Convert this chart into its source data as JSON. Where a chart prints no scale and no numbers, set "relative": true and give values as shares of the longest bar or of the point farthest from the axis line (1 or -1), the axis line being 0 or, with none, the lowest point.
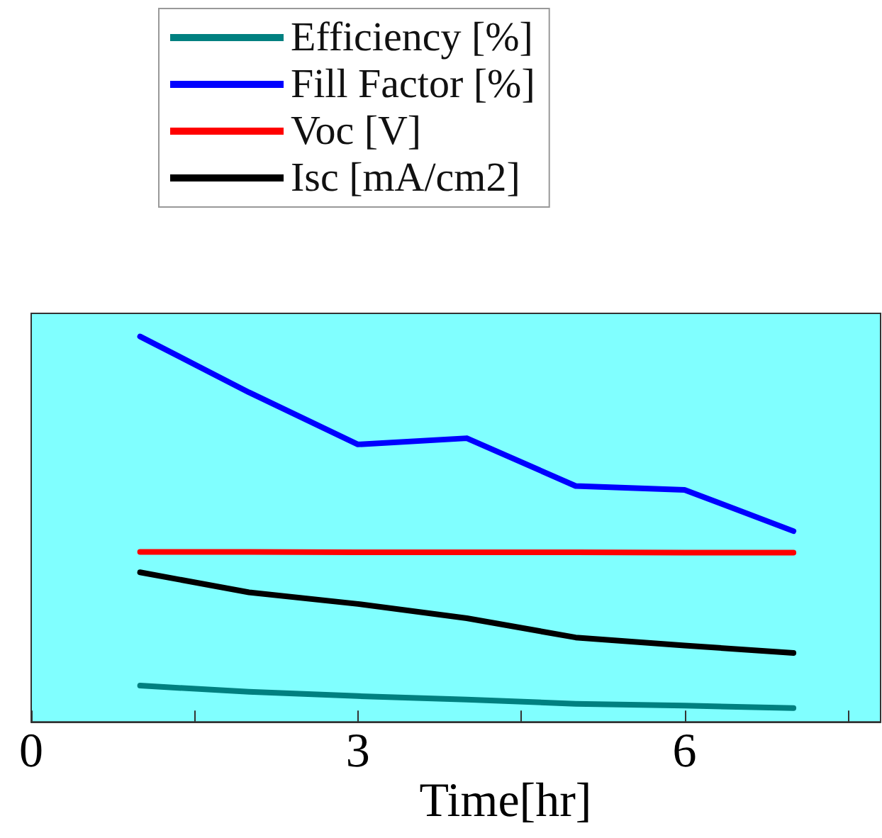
{
  "chart_data": {
    "type": "line",
    "relative": true,
    "xlabel": "Time[hr]",
    "x": [
      1,
      2,
      3,
      4,
      5,
      6,
      7
    ],
    "xlim": [
      0,
      7.8
    ],
    "xticks": [
      0,
      {
        "value": 1.5,
        "label": null
      },
      3,
      {
        "value": 4.5,
        "label": null
      },
      6,
      {
        "value": 7.5,
        "label": null
      }
    ],
    "series": [
      {
        "name": "Efficiency [%]",
        "color": "#008080",
        "values": [
          0.094,
          0.078,
          0.067,
          0.058,
          0.047,
          0.042,
          0.036
        ]
      },
      {
        "name": "Fill Factor [%]",
        "color": "#0000ff",
        "values": [
          1,
          0.855,
          0.72,
          0.736,
          0.612,
          0.602,
          0.495
        ]
      },
      {
        "name": "Voc [V]",
        "color": "#ff0000",
        "values": [
          0.441,
          0.441,
          0.44,
          0.44,
          0.44,
          0.439,
          0.439
        ]
      },
      {
        "name": "Isc [mA/cm2]",
        "color": "#000000",
        "values": [
          0.388,
          0.336,
          0.306,
          0.269,
          0.219,
          0.198,
          0.179
        ]
      }
    ],
    "legend": "top",
    "grid": false,
    "marker": "none",
    "line_style": "solid"
  }
}
